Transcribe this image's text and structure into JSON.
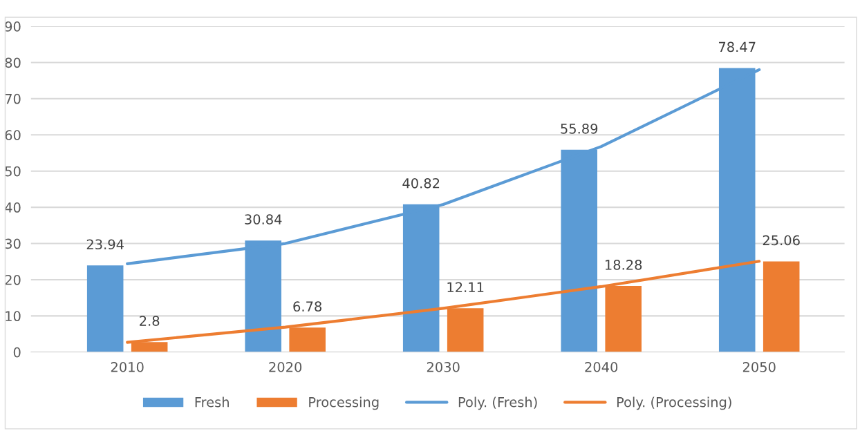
{
  "chart_data": {
    "type": "bar",
    "categories": [
      "2010",
      "2020",
      "2030",
      "2040",
      "2050"
    ],
    "series": [
      {
        "name": "Fresh",
        "color": "#5b9bd5",
        "values": [
          23.94,
          30.84,
          40.82,
          55.89,
          78.47
        ],
        "value_labels": [
          "23.94",
          "30.84",
          "40.82",
          "55.89",
          "78.47"
        ]
      },
      {
        "name": "Processing",
        "color": "#ed7d31",
        "values": [
          2.8,
          6.78,
          12.11,
          18.28,
          25.06
        ],
        "value_labels": [
          "2.8",
          "6.78",
          "12.11",
          "18.28",
          "25.06"
        ]
      },
      {
        "name": "Poly. (Fresh)",
        "type": "line",
        "color": "#5b9bd5",
        "values": [
          24.4,
          30.0,
          40.8,
          56.8,
          78.0
        ]
      },
      {
        "name": "Poly. (Processing)",
        "type": "line",
        "color": "#ed7d31",
        "values": [
          2.7,
          6.9,
          12.1,
          18.1,
          25.1
        ]
      }
    ],
    "ylim": [
      0,
      90
    ],
    "yticks": [
      0,
      10,
      20,
      30,
      40,
      50,
      60,
      70,
      80,
      90
    ],
    "grid": "y",
    "legend": "bottom"
  }
}
